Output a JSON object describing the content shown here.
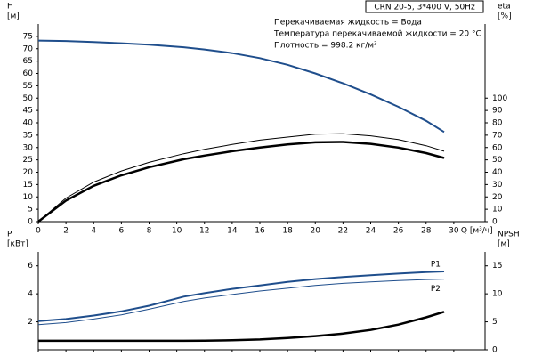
{
  "chart_data": [
    {
      "type": "line",
      "title": "CRN 20-5, 3*400 V, 50Hz",
      "annotations": [
        "Перекачиваемая жидкость = Вода",
        "Температура перекачиваемой жидкости = 20 °C",
        "Плотность = 998.2 кг/м³"
      ],
      "xlabel": "Q [м³/ч]",
      "ylabel": [
        "H",
        "[м]"
      ],
      "y2label": [
        "eta",
        "[%]"
      ],
      "xlim": [
        0,
        32
      ],
      "xticks": [
        0,
        2,
        4,
        6,
        8,
        10,
        12,
        14,
        16,
        18,
        20,
        22,
        24,
        26,
        28,
        30
      ],
      "ylim": [
        0,
        80
      ],
      "yticks": [
        0,
        5,
        10,
        15,
        20,
        25,
        30,
        35,
        40,
        45,
        50,
        55,
        60,
        65,
        70,
        75
      ],
      "y2lim": [
        0,
        160
      ],
      "y2ticks": [
        0,
        10,
        20,
        30,
        40,
        50,
        60,
        70,
        80,
        90,
        100
      ],
      "x": [
        0,
        2,
        4,
        6,
        8,
        10.5,
        12,
        14,
        16,
        18,
        20,
        22,
        24,
        26,
        28,
        29.3
      ],
      "series": [
        {
          "color": "#1f4e8c",
          "width": 2,
          "values": [
            73.3,
            73.1,
            72.7,
            72.2,
            71.6,
            70.6,
            69.7,
            68.2,
            66.2,
            63.5,
            60,
            56,
            51.5,
            46.5,
            40.8,
            36.3
          ]
        },
        {
          "color": "#000000",
          "width": 1,
          "axis": "y2",
          "values": [
            0,
            19,
            32,
            41,
            48,
            55,
            58.5,
            62.5,
            66,
            68.5,
            70.8,
            71.2,
            69.5,
            66.5,
            61.5,
            57
          ]
        },
        {
          "color": "#000000",
          "width": 2.5,
          "axis": "y2",
          "values": [
            0,
            17,
            29,
            37.5,
            44,
            50.5,
            53.5,
            57,
            60,
            62.5,
            64.2,
            64.5,
            63,
            60,
            55.5,
            51.5
          ]
        }
      ]
    },
    {
      "type": "line",
      "ylabel": [
        "P",
        "[кВт]"
      ],
      "y2label": [
        "NPSH",
        "[м]"
      ],
      "xlim": [
        0,
        32
      ],
      "ylim": [
        0,
        7
      ],
      "yticks": [
        2,
        4,
        6
      ],
      "y2lim": [
        0,
        17.5
      ],
      "y2ticks": [
        0,
        5,
        10,
        15
      ],
      "x": [
        0,
        2,
        4,
        6,
        8,
        10.5,
        12,
        14,
        16,
        18,
        20,
        22,
        24,
        26,
        28,
        29.3
      ],
      "series": [
        {
          "name": "P1",
          "color": "#1f4e8c",
          "width": 2,
          "values": [
            2.05,
            2.2,
            2.45,
            2.75,
            3.15,
            3.8,
            4.05,
            4.35,
            4.6,
            4.85,
            5.05,
            5.2,
            5.33,
            5.45,
            5.55,
            5.6
          ]
        },
        {
          "name": "P2",
          "color": "#1f4e8c",
          "width": 1,
          "values": [
            1.8,
            1.95,
            2.2,
            2.5,
            2.9,
            3.45,
            3.7,
            3.95,
            4.2,
            4.4,
            4.6,
            4.75,
            4.85,
            4.95,
            5.02,
            5.05
          ]
        },
        {
          "color": "#000000",
          "width": 2.5,
          "axis": "y2",
          "values": [
            1.6,
            1.6,
            1.6,
            1.6,
            1.6,
            1.6,
            1.62,
            1.7,
            1.85,
            2.1,
            2.45,
            2.9,
            3.55,
            4.5,
            5.8,
            6.8
          ]
        }
      ]
    }
  ]
}
